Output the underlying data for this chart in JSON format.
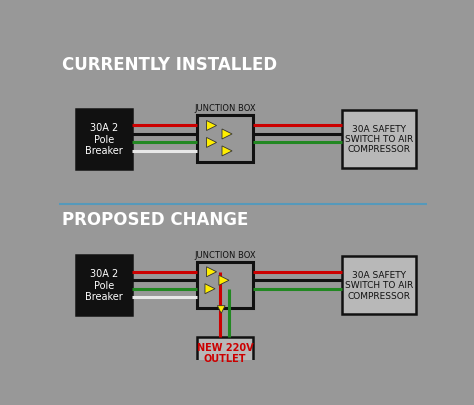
{
  "bg_color": "#989898",
  "top_section_title": "CURRENTLY INSTALLED",
  "bottom_section_title": "PROPOSED CHANGE",
  "junction_box_label": "JUNCTION BOX",
  "breaker_label": "30A 2\nPole\nBreaker",
  "compressor_label": "30A SAFETY\nSWITCH TO AIR\nCOMPRESSOR",
  "outlet_label": "NEW 220V\nOUTLET",
  "wire_colors": [
    "#cc0000",
    "#111111",
    "#228822",
    "#e8e8e8"
  ],
  "wire_lw": 2.2,
  "arrow_color": "#ffee00",
  "divider_color": "#5599bb",
  "outlet_text_color": "#cc0000",
  "title_color": "#ffffff",
  "label_color": "#222222",
  "box_face_dark": "#111111",
  "box_face_light": "#b8b8b8",
  "box_edge": "#111111"
}
